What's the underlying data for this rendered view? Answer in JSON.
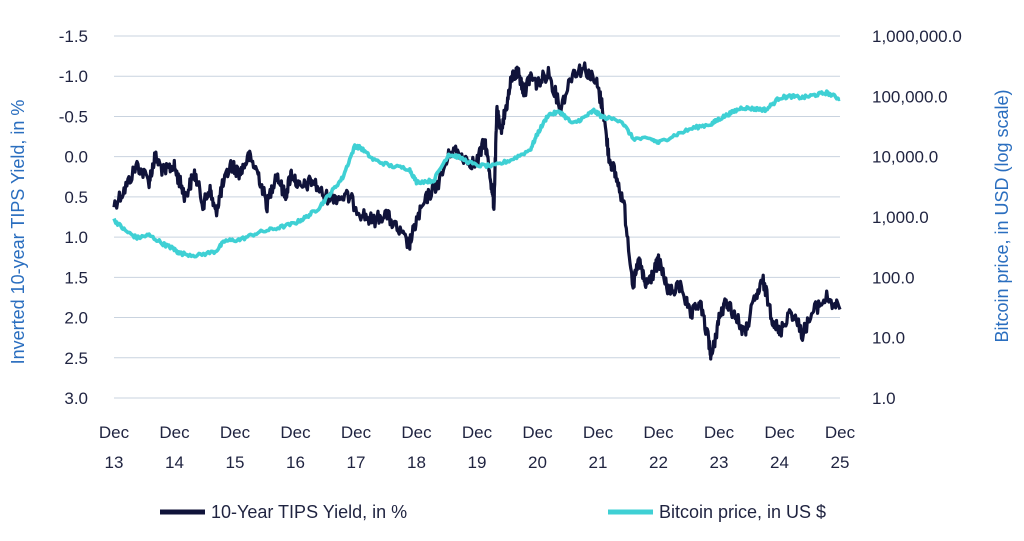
{
  "chart_data": {
    "type": "line",
    "colors": {
      "tips": "#10133a",
      "btc": "#3fd0d4",
      "grid": "#c9d3df",
      "axis_title": "#2a6ebf",
      "text": "#1f2340"
    },
    "x_ticks": [
      {
        "line1": "Dec",
        "line2": "13",
        "year": 2013.92
      },
      {
        "line1": "Dec",
        "line2": "14",
        "year": 2014.92
      },
      {
        "line1": "Dec",
        "line2": "15",
        "year": 2015.92
      },
      {
        "line1": "Dec",
        "line2": "16",
        "year": 2016.92
      },
      {
        "line1": "Dec",
        "line2": "17",
        "year": 2017.92
      },
      {
        "line1": "Dec",
        "line2": "18",
        "year": 2018.92
      },
      {
        "line1": "Dec",
        "line2": "19",
        "year": 2019.92
      },
      {
        "line1": "Dec",
        "line2": "20",
        "year": 2020.92
      },
      {
        "line1": "Dec",
        "line2": "21",
        "year": 2021.92
      },
      {
        "line1": "Dec",
        "line2": "22",
        "year": 2022.92
      },
      {
        "line1": "Dec",
        "line2": "23",
        "year": 2023.92
      },
      {
        "line1": "Dec",
        "line2": "24",
        "year": 2024.92
      },
      {
        "line1": "Dec",
        "line2": "25",
        "year": 2025.92
      }
    ],
    "x_range": [
      2013.92,
      2025.92
    ],
    "left_axis": {
      "title": "Inverted 10-year TIPS Yield, in %",
      "inverted": true,
      "range": [
        -1.5,
        3.0
      ],
      "ticks": [
        {
          "value": -1.5,
          "label": "-1.5"
        },
        {
          "value": -1.0,
          "label": "-1.0"
        },
        {
          "value": -0.5,
          "label": "-0.5"
        },
        {
          "value": 0.0,
          "label": "0.0"
        },
        {
          "value": 0.5,
          "label": "0.5"
        },
        {
          "value": 1.0,
          "label": "1.0"
        },
        {
          "value": 1.5,
          "label": "1.5"
        },
        {
          "value": 2.0,
          "label": "2.0"
        },
        {
          "value": 2.5,
          "label": "2.5"
        },
        {
          "value": 3.0,
          "label": "3.0"
        }
      ]
    },
    "right_axis": {
      "title": "Bitcoin price, in USD (log scale)",
      "log_scale": true,
      "range": [
        1,
        1000000
      ],
      "ticks": [
        {
          "value": 1,
          "label": "1.0"
        },
        {
          "value": 10,
          "label": "10.0"
        },
        {
          "value": 100,
          "label": "100.0"
        },
        {
          "value": 1000,
          "label": "1,000.0"
        },
        {
          "value": 10000,
          "label": "10,000.0"
        },
        {
          "value": 100000,
          "label": "100,000.0"
        },
        {
          "value": 1000000,
          "label": "1,000,000.0"
        }
      ]
    },
    "series": [
      {
        "name": "10-Year TIPS Yield, in %",
        "axis": "left",
        "x": [
          2013.92,
          2014.1,
          2014.3,
          2014.5,
          2014.6,
          2014.75,
          2014.9,
          2015.0,
          2015.1,
          2015.25,
          2015.4,
          2015.5,
          2015.6,
          2015.7,
          2015.85,
          2016.0,
          2016.15,
          2016.3,
          2016.45,
          2016.6,
          2016.75,
          2016.85,
          2017.0,
          2017.2,
          2017.4,
          2017.6,
          2017.8,
          2018.0,
          2018.2,
          2018.4,
          2018.6,
          2018.8,
          2018.92,
          2019.1,
          2019.3,
          2019.5,
          2019.7,
          2019.9,
          2020.05,
          2020.15,
          2020.2,
          2020.25,
          2020.3,
          2020.4,
          2020.5,
          2020.6,
          2020.7,
          2020.8,
          2020.92,
          2021.1,
          2021.3,
          2021.5,
          2021.7,
          2021.9,
          2022.0,
          2022.1,
          2022.2,
          2022.35,
          2022.5,
          2022.6,
          2022.7,
          2022.8,
          2022.92,
          2023.1,
          2023.3,
          2023.45,
          2023.6,
          2023.75,
          2023.8,
          2023.92,
          2024.05,
          2024.2,
          2024.35,
          2024.5,
          2024.65,
          2024.8,
          2024.92,
          2025.1,
          2025.3,
          2025.5,
          2025.7,
          2025.92
        ],
        "values": [
          0.6,
          0.4,
          0.1,
          0.3,
          0.0,
          0.2,
          0.1,
          0.3,
          0.5,
          0.2,
          0.6,
          0.4,
          0.7,
          0.4,
          0.1,
          0.2,
          0.0,
          0.2,
          0.6,
          0.2,
          0.5,
          0.2,
          0.4,
          0.3,
          0.5,
          0.5,
          0.5,
          0.7,
          0.8,
          0.7,
          0.9,
          1.1,
          0.8,
          0.5,
          0.3,
          -0.1,
          0.0,
          0.1,
          -0.2,
          0.3,
          0.6,
          -0.6,
          -0.3,
          -0.6,
          -1.0,
          -1.05,
          -0.8,
          -1.0,
          -0.9,
          -1.05,
          -0.6,
          -1.05,
          -1.1,
          -0.9,
          -0.6,
          0.0,
          0.2,
          0.6,
          1.6,
          1.3,
          1.6,
          1.5,
          1.3,
          1.7,
          1.6,
          2.0,
          1.8,
          2.3,
          2.5,
          2.0,
          1.8,
          2.0,
          2.2,
          1.8,
          1.55,
          2.0,
          2.2,
          1.9,
          2.2,
          1.9,
          1.75,
          1.9
        ]
      },
      {
        "name": "Bitcoin price, in US $",
        "axis": "right",
        "x": [
          2013.92,
          2014.1,
          2014.3,
          2014.5,
          2014.75,
          2014.9,
          2015.0,
          2015.3,
          2015.6,
          2015.75,
          2016.0,
          2016.3,
          2016.6,
          2016.9,
          2017.1,
          2017.3,
          2017.5,
          2017.7,
          2017.9,
          2018.0,
          2018.2,
          2018.5,
          2018.8,
          2018.92,
          2019.2,
          2019.45,
          2019.6,
          2019.9,
          2020.2,
          2020.5,
          2020.8,
          2020.92,
          2021.1,
          2021.3,
          2021.5,
          2021.7,
          2021.85,
          2022.0,
          2022.3,
          2022.5,
          2022.8,
          2022.92,
          2023.2,
          2023.5,
          2023.8,
          2023.92,
          2024.1,
          2024.3,
          2024.5,
          2024.7,
          2024.92,
          2025.1,
          2025.3,
          2025.5,
          2025.7,
          2025.92
        ],
        "values": [
          900,
          600,
          450,
          500,
          350,
          300,
          250,
          230,
          270,
          400,
          420,
          550,
          650,
          780,
          1000,
          1400,
          2500,
          4500,
          15000,
          14000,
          9000,
          7000,
          6300,
          3800,
          4000,
          11000,
          10000,
          7200,
          7000,
          9000,
          13000,
          24000,
          50000,
          55000,
          35000,
          45000,
          58000,
          45000,
          40000,
          20000,
          19500,
          17000,
          23000,
          30000,
          35000,
          42000,
          52000,
          65000,
          62000,
          60000,
          95000,
          100000,
          95000,
          105000,
          115000,
          90000
        ]
      }
    ]
  },
  "legend": {
    "items": [
      {
        "label": "10-Year TIPS Yield, in %",
        "color": "#10133a"
      },
      {
        "label": "Bitcoin price, in US $",
        "color": "#3fd0d4"
      }
    ]
  }
}
